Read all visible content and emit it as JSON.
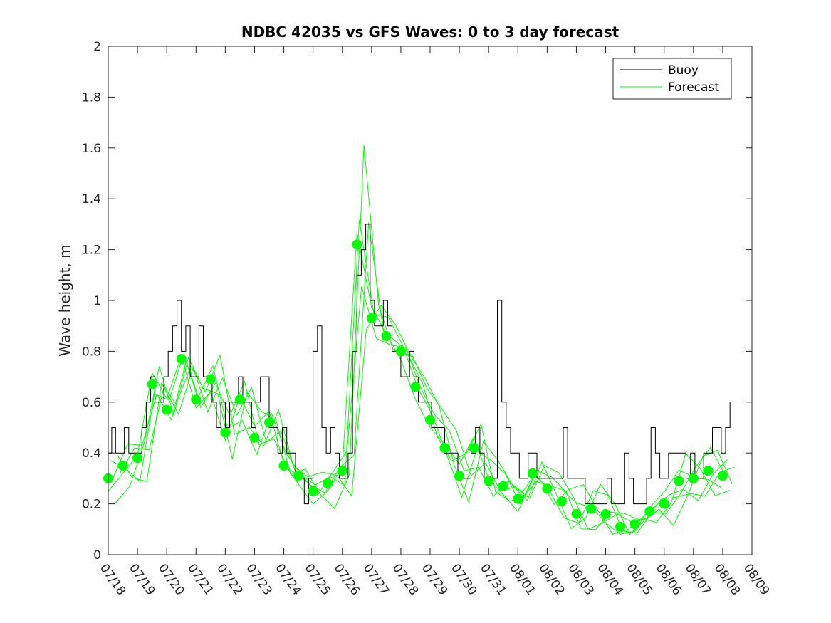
{
  "chart_data": {
    "type": "line",
    "title": "NDBC 42035 vs GFS Waves: 0 to 3 day forecast",
    "xlabel": "",
    "ylabel": "Wave height, m",
    "ylim": [
      0,
      2
    ],
    "yticks": [
      "0",
      "0.2",
      "0.4",
      "0.6",
      "0.8",
      "1",
      "1.2",
      "1.4",
      "1.6",
      "1.8",
      "2"
    ],
    "xlim": [
      0,
      22
    ],
    "xticks": [
      "07/18",
      "07/19",
      "07/20",
      "07/21",
      "07/22",
      "07/23",
      "07/24",
      "07/25",
      "07/26",
      "07/27",
      "07/28",
      "07/29",
      "07/30",
      "07/31",
      "08/01",
      "08/02",
      "08/03",
      "08/04",
      "08/05",
      "08/06",
      "08/07",
      "08/08",
      "08/09"
    ],
    "grid": false,
    "legend": {
      "placement": "top-right",
      "entries": [
        "Buoy",
        "Forecast"
      ]
    },
    "colors": {
      "buoy": "#000000",
      "forecast": "#00ff00",
      "axes": "#262626"
    },
    "series": [
      {
        "name": "Buoy",
        "x": [
          0,
          0.12,
          0.25,
          0.4,
          0.55,
          0.7,
          0.85,
          1.0,
          1.15,
          1.3,
          1.45,
          1.6,
          1.75,
          1.9,
          2.05,
          2.2,
          2.35,
          2.5,
          2.65,
          2.8,
          2.95,
          3.1,
          3.25,
          3.4,
          3.55,
          3.7,
          3.85,
          4.0,
          4.15,
          4.3,
          4.45,
          4.6,
          4.75,
          4.9,
          5.05,
          5.2,
          5.35,
          5.5,
          5.65,
          5.8,
          5.95,
          6.1,
          6.25,
          6.4,
          6.55,
          6.7,
          6.85,
          7.0,
          7.15,
          7.3,
          7.45,
          7.6,
          7.75,
          7.9,
          8.05,
          8.2,
          8.35,
          8.5,
          8.65,
          8.8,
          8.95,
          9.1,
          9.25,
          9.4,
          9.55,
          9.7,
          9.85,
          10.0,
          10.15,
          10.3,
          10.45,
          10.6,
          10.75,
          10.9,
          11.05,
          11.2,
          11.35,
          11.5,
          11.65,
          11.8,
          11.95,
          12.1,
          12.25,
          12.4,
          12.55,
          12.7,
          12.85,
          13.0,
          13.15,
          13.3,
          13.45,
          13.6,
          13.75,
          13.9,
          14.05,
          14.2,
          14.35,
          14.5,
          14.65,
          14.8,
          14.95,
          15.1,
          15.25,
          15.4,
          15.55,
          15.7,
          15.85,
          16.0,
          16.15,
          16.3,
          16.45,
          16.6,
          16.75,
          16.9,
          17.05,
          17.2,
          17.35,
          17.5,
          17.65,
          17.8,
          17.95,
          18.1,
          18.25,
          18.4,
          18.55,
          18.7,
          18.85,
          19.0,
          19.15,
          19.3,
          19.45,
          19.6,
          19.75,
          19.9,
          20.05,
          20.2,
          20.35,
          20.5,
          20.65,
          20.8,
          20.95,
          21.1,
          21.25
        ],
        "values": [
          0.4,
          0.5,
          0.4,
          0.4,
          0.5,
          0.4,
          0.4,
          0.4,
          0.5,
          0.6,
          0.7,
          0.6,
          0.6,
          0.7,
          0.8,
          0.9,
          1.0,
          0.8,
          0.9,
          0.7,
          0.7,
          0.9,
          0.7,
          0.7,
          0.6,
          0.5,
          0.6,
          0.5,
          0.6,
          0.6,
          0.7,
          0.6,
          0.6,
          0.5,
          0.6,
          0.7,
          0.7,
          0.5,
          0.5,
          0.4,
          0.5,
          0.4,
          0.4,
          0.3,
          0.3,
          0.2,
          0.3,
          0.8,
          0.9,
          0.5,
          0.4,
          0.5,
          0.4,
          0.3,
          0.3,
          0.4,
          0.8,
          1.1,
          1.2,
          1.3,
          1.0,
          0.9,
          0.9,
          1.0,
          0.9,
          0.8,
          0.8,
          0.7,
          0.7,
          0.8,
          0.7,
          0.6,
          0.6,
          0.6,
          0.5,
          0.5,
          0.5,
          0.4,
          0.4,
          0.4,
          0.3,
          0.3,
          0.3,
          0.4,
          0.5,
          0.4,
          0.3,
          0.3,
          0.3,
          1.0,
          0.6,
          0.5,
          0.4,
          0.4,
          0.3,
          0.3,
          0.4,
          0.4,
          0.3,
          0.3,
          0.3,
          0.3,
          0.3,
          0.3,
          0.5,
          0.3,
          0.3,
          0.3,
          0.3,
          0.2,
          0.2,
          0.2,
          0.2,
          0.2,
          0.3,
          0.2,
          0.2,
          0.2,
          0.4,
          0.3,
          0.2,
          0.2,
          0.2,
          0.3,
          0.5,
          0.4,
          0.3,
          0.3,
          0.4,
          0.4,
          0.4,
          0.4,
          0.3,
          0.4,
          0.3,
          0.3,
          0.4,
          0.4,
          0.5,
          0.5,
          0.4,
          0.5,
          0.6
        ]
      },
      {
        "name": "Forecast",
        "x": [
          0.0,
          0.5,
          1.0,
          1.5,
          2.0,
          2.5,
          3.0,
          3.5,
          4.0,
          4.5,
          5.0,
          5.5,
          6.0,
          6.5,
          7.0,
          7.5,
          8.0,
          8.5,
          9.0,
          9.5,
          10.0,
          10.5,
          11.0,
          11.5,
          12.0,
          12.5,
          13.0,
          13.5,
          14.0,
          14.5,
          15.0,
          15.5,
          16.0,
          16.5,
          17.0,
          17.5,
          18.0,
          18.5,
          19.0,
          19.5,
          20.0,
          20.5,
          21.0
        ],
        "values": [
          0.3,
          0.35,
          0.38,
          0.67,
          0.57,
          0.77,
          0.61,
          0.69,
          0.48,
          0.61,
          0.46,
          0.52,
          0.35,
          0.31,
          0.25,
          0.28,
          0.33,
          1.22,
          0.93,
          0.86,
          0.8,
          0.66,
          0.53,
          0.42,
          0.31,
          0.42,
          0.29,
          0.27,
          0.22,
          0.32,
          0.26,
          0.21,
          0.16,
          0.18,
          0.16,
          0.11,
          0.12,
          0.17,
          0.2,
          0.29,
          0.3,
          0.33,
          0.31
        ]
      }
    ]
  }
}
